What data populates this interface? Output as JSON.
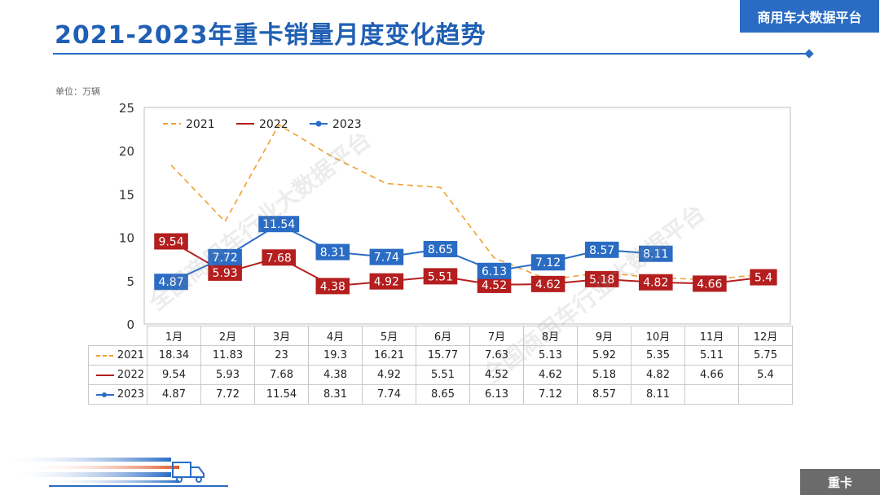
{
  "header": {
    "title": "2021-2023年重卡销量月度变化趋势",
    "brand": "商用车大数据平台"
  },
  "unit_label": "单位：万辆",
  "footer_tag": "重卡",
  "watermark": "全国商用车行业大数据平台",
  "colors": {
    "accent": "#2a6cc4",
    "s2021": "#f0a030",
    "s2022": "#b41e1e",
    "s2023": "#2a6cc4"
  },
  "chart_data": {
    "type": "line",
    "categories": [
      "1月",
      "2月",
      "3月",
      "4月",
      "5月",
      "6月",
      "7月",
      "8月",
      "9月",
      "10月",
      "11月",
      "12月"
    ],
    "ylim": [
      0,
      25
    ],
    "yticks": [
      0,
      5,
      10,
      15,
      20,
      25
    ],
    "legend_position": "top-left",
    "series": [
      {
        "name": "2021",
        "style": "dashed",
        "values": [
          18.34,
          11.83,
          23,
          19.3,
          16.21,
          15.77,
          7.63,
          5.13,
          5.92,
          5.35,
          5.11,
          5.75
        ]
      },
      {
        "name": "2022",
        "style": "solid",
        "values": [
          9.54,
          5.93,
          7.68,
          4.38,
          4.92,
          5.51,
          4.52,
          4.62,
          5.18,
          4.82,
          4.66,
          5.4
        ]
      },
      {
        "name": "2023",
        "style": "solid-marker",
        "values": [
          4.87,
          7.72,
          11.54,
          8.31,
          7.74,
          8.65,
          6.13,
          7.12,
          8.57,
          8.11,
          null,
          null
        ]
      }
    ],
    "table": {
      "rows": [
        {
          "name": "2021",
          "values": [
            "18.34",
            "11.83",
            "23",
            "19.3",
            "16.21",
            "15.77",
            "7.63",
            "5.13",
            "5.92",
            "5.35",
            "5.11",
            "5.75"
          ]
        },
        {
          "name": "2022",
          "values": [
            "9.54",
            "5.93",
            "7.68",
            "4.38",
            "4.92",
            "5.51",
            "4.52",
            "4.62",
            "5.18",
            "4.82",
            "4.66",
            "5.4"
          ]
        },
        {
          "name": "2023",
          "values": [
            "4.87",
            "7.72",
            "11.54",
            "8.31",
            "7.74",
            "8.65",
            "6.13",
            "7.12",
            "8.57",
            "8.11",
            "",
            ""
          ]
        }
      ]
    }
  }
}
